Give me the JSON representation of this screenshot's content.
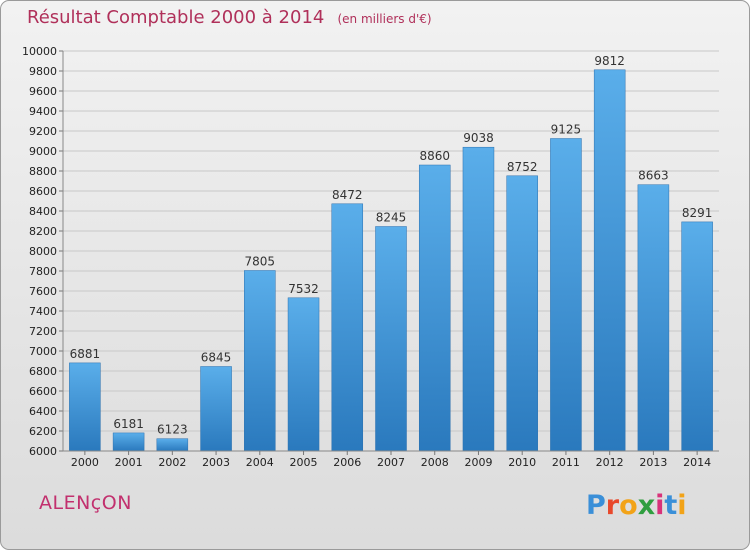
{
  "title": "Résultat Comptable 2000 à 2014",
  "subtitle": "(en milliers d'€)",
  "commune": "ALENçON",
  "logo": {
    "letters": [
      "P",
      "r",
      "o",
      "x",
      "i",
      "t",
      "i"
    ],
    "colors": [
      "#3a8fd8",
      "#e8492c",
      "#f2a318",
      "#2f9e3f",
      "#d8327a",
      "#3a8fd8",
      "#f2a318"
    ]
  },
  "chart_data": {
    "type": "bar",
    "title": "Résultat Comptable 2000 à 2014",
    "subtitle": "(en milliers d'€)",
    "xlabel": "",
    "ylabel": "",
    "categories": [
      "2000",
      "2001",
      "2002",
      "2003",
      "2004",
      "2005",
      "2006",
      "2007",
      "2008",
      "2009",
      "2010",
      "2011",
      "2012",
      "2013",
      "2014"
    ],
    "values": [
      6881,
      6181,
      6123,
      6845,
      7805,
      7532,
      8472,
      8245,
      8860,
      9038,
      8752,
      9125,
      9812,
      8663,
      8291
    ],
    "ylim": [
      6000,
      10000
    ],
    "ytick_step": 200,
    "grid": true,
    "legend": "none",
    "bar_color": "#3f95d8"
  }
}
